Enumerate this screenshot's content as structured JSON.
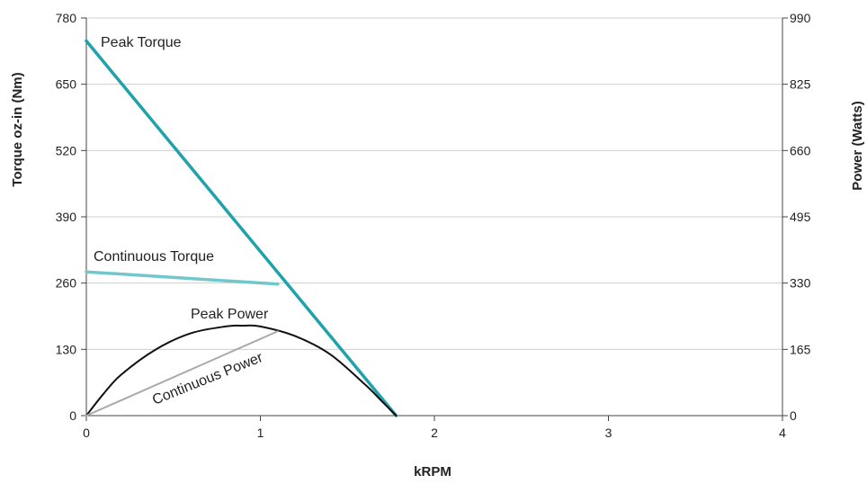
{
  "chart_data": {
    "type": "line",
    "xlabel": "kRPM",
    "ylabel_left": "Torque oz-in (Nm)",
    "ylabel_right": "Power (Watts)",
    "xlim": [
      0,
      4
    ],
    "ylim_left": [
      0,
      780
    ],
    "ylim_right": [
      0,
      990
    ],
    "x_ticks": [
      "0",
      "1",
      "2",
      "3",
      "4"
    ],
    "y_ticks_left": [
      "0",
      "130",
      "260",
      "390",
      "520",
      "650",
      "780"
    ],
    "y_ticks_right": [
      "0",
      "165",
      "330",
      "495",
      "660",
      "825",
      "990"
    ],
    "grid": "horizontal",
    "legend": "none (series labeled inline)",
    "series": [
      {
        "name": "Peak Torque",
        "axis": "left",
        "color": "#1fa2aa",
        "x": [
          0,
          1.78
        ],
        "y": [
          735,
          0
        ]
      },
      {
        "name": "Continuous Torque",
        "axis": "left",
        "color": "#72c7cc",
        "x": [
          0,
          1.1
        ],
        "y": [
          282,
          258
        ]
      },
      {
        "name": "Peak Power",
        "axis": "right",
        "color": "#111111",
        "x": [
          0,
          0.1,
          0.2,
          0.4,
          0.6,
          0.8,
          0.9,
          1.0,
          1.2,
          1.4,
          1.6,
          1.7,
          1.78
        ],
        "y": [
          0,
          55,
          102,
          165,
          205,
          222,
          224,
          222,
          198,
          153,
          78,
          35,
          0
        ]
      },
      {
        "name": "Continuous Power",
        "axis": "right",
        "color": "#aaaaaa",
        "x": [
          0,
          1.1
        ],
        "y": [
          0,
          210
        ]
      }
    ]
  }
}
